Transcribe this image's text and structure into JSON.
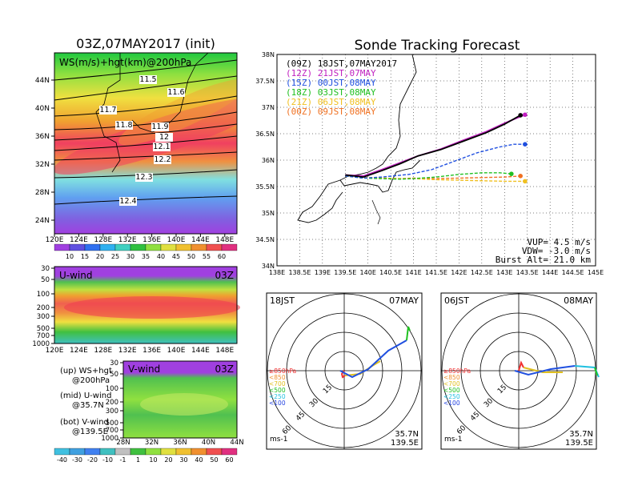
{
  "colors": {
    "sonde_09Z": "#000000",
    "sonde_12Z": "#c020c0",
    "sonde_15Z": "#2050e0",
    "sonde_18Z": "#20c020",
    "sonde_21Z": "#f0c020",
    "sonde_00Z": "#f07020"
  },
  "map_panel": {
    "title": "03Z,07MAY2017 (init)",
    "label": "WS(m/s)+hgt(km)@200hPa",
    "x_ticks": [
      "120E",
      "124E",
      "128E",
      "132E",
      "136E",
      "140E",
      "144E",
      "148E"
    ],
    "y_ticks": [
      "24N",
      "28N",
      "32N",
      "36N",
      "40N",
      "44N"
    ],
    "contours": [
      "11.5",
      "11.6",
      "11.7",
      "11.8",
      "11.9",
      "12",
      "12.1",
      "12.2",
      "12.3",
      "12.4"
    ],
    "colorbar": [
      "10",
      "15",
      "20",
      "25",
      "30",
      "35",
      "40",
      "45",
      "50",
      "55",
      "60"
    ]
  },
  "u_panel": {
    "label": "U-wind",
    "time": "03Z",
    "y_ticks": [
      "30",
      "50",
      "100",
      "200",
      "300",
      "500",
      "700",
      "1000"
    ],
    "x_ticks": [
      "120E",
      "124E",
      "128E",
      "132E",
      "136E",
      "140E",
      "144E",
      "148E"
    ]
  },
  "v_panel": {
    "label": "V-wind",
    "time": "03Z",
    "y_ticks": [
      "30",
      "50",
      "100",
      "200",
      "300",
      "500",
      "700",
      "1000"
    ],
    "x_ticks": [
      "28N",
      "32N",
      "36N",
      "40N",
      "44N"
    ]
  },
  "legend_notes": [
    {
      "a": "(up) WS+hgt",
      "b": "@200hPa"
    },
    {
      "a": "(mid) U-wind",
      "b": "@35.7N"
    },
    {
      "a": "(bot) V-wind",
      "b": "@139.5E"
    }
  ],
  "wind_colorbar": [
    "-40",
    "-30",
    "-20",
    "-10",
    "-1",
    "1",
    "10",
    "20",
    "30",
    "40",
    "50",
    "60"
  ],
  "tracking": {
    "title": "Sonde Tracking Forecast",
    "x_ticks": [
      "138E",
      "138.5E",
      "139E",
      "139.5E",
      "140E",
      "140.5E",
      "141E",
      "141.5E",
      "142E",
      "142.5E",
      "143E",
      "143.5E",
      "144E",
      "144.5E",
      "145E"
    ],
    "y_ticks": [
      "34N",
      "34.5N",
      "35N",
      "35.5N",
      "36N",
      "36.5N",
      "37N",
      "37.5N",
      "38N"
    ],
    "vup": "VUP= 4.5 m/s",
    "vdw": "VDW= -3.0 m/s",
    "burst": "Burst Alt= 21.0 km"
  },
  "chart_data": {
    "type": "line",
    "title": "Sonde Tracking Forecast",
    "xlim": [
      138,
      145
    ],
    "ylim": [
      34,
      38
    ],
    "series": [
      {
        "name": "(09Z) 18JST,07MAY2017",
        "color": "#000000",
        "x": [
          139.5,
          139.9,
          140.3,
          140.7,
          141.1,
          141.6,
          142.1,
          142.6,
          143.0,
          143.35
        ],
        "y": [
          35.72,
          35.68,
          35.8,
          35.93,
          36.08,
          36.2,
          36.36,
          36.52,
          36.68,
          36.85
        ]
      },
      {
        "name": "(12Z) 21JST,07MAY",
        "color": "#c020c0",
        "x": [
          139.5,
          139.9,
          140.3,
          140.7,
          141.1,
          141.6,
          142.1,
          142.6,
          143.0,
          143.45
        ],
        "y": [
          35.72,
          35.7,
          35.82,
          35.95,
          36.08,
          36.21,
          36.38,
          36.54,
          36.7,
          36.86
        ]
      },
      {
        "name": "(15Z) 00JST,08MAY",
        "color": "#2050e0",
        "x": [
          139.5,
          139.9,
          140.3,
          140.9,
          141.4,
          141.9,
          142.4,
          142.9,
          143.2,
          143.45
        ],
        "y": [
          35.7,
          35.66,
          35.68,
          35.73,
          35.82,
          35.98,
          36.14,
          36.25,
          36.3,
          36.3
        ]
      },
      {
        "name": "(18Z) 03JST,08MAY",
        "color": "#20c020",
        "x": [
          139.5,
          139.9,
          140.3,
          140.7,
          141.0,
          141.5,
          142.0,
          142.5,
          142.9,
          143.15
        ],
        "y": [
          35.7,
          35.66,
          35.65,
          35.64,
          35.65,
          35.68,
          35.73,
          35.76,
          35.76,
          35.74
        ]
      },
      {
        "name": "(21Z) 06JST,08MAY",
        "color": "#f0c020",
        "x": [
          139.5,
          139.9,
          140.3,
          140.7,
          141.0,
          141.5,
          142.0,
          142.5,
          143.0,
          143.45
        ],
        "y": [
          35.7,
          35.67,
          35.66,
          35.65,
          35.65,
          35.63,
          35.62,
          35.61,
          35.6,
          35.6
        ]
      },
      {
        "name": "(00Z) 09JST,08MAY",
        "color": "#f07020",
        "x": [
          139.5,
          139.9,
          140.3,
          140.7,
          141.0,
          141.5,
          142.0,
          142.5,
          143.0,
          143.35
        ],
        "y": [
          35.7,
          35.67,
          35.66,
          35.65,
          35.66,
          35.65,
          35.66,
          35.67,
          35.68,
          35.7
        ]
      }
    ]
  },
  "hodographs": [
    {
      "left_label": "18JST",
      "right_label": "07MAY",
      "lat": "35.7N",
      "lon": "139.5E",
      "unit": "ms-1"
    },
    {
      "left_label": "06JST",
      "right_label": "08MAY",
      "lat": "35.7N",
      "lon": "139.5E",
      "unit": "ms-1"
    }
  ],
  "hodo_rings": [
    "15",
    "30",
    "45",
    "60"
  ],
  "hodo_legend": [
    "≥850hPa",
    "<850",
    "<700",
    "<500",
    "<250",
    "<100"
  ]
}
